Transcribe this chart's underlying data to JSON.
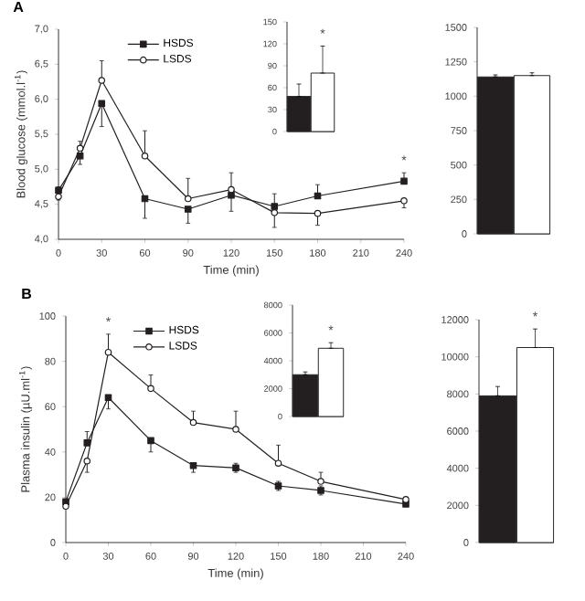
{
  "chart_data": [
    {
      "type": "line",
      "title": "A",
      "xlabel": "Time (min)",
      "ylabel": "Blood glucose (mmol.l$^{-1}$)",
      "x": [
        0,
        15,
        30,
        60,
        90,
        120,
        150,
        180,
        240
      ],
      "xlim": [
        0,
        240
      ],
      "xticks": [
        0,
        30,
        60,
        90,
        120,
        150,
        180,
        210,
        240
      ],
      "ylim": [
        4.0,
        7.0
      ],
      "yticks": [
        {
          "value": 4.0,
          "label": "4,0"
        },
        {
          "value": 4.5,
          "label": "4,5"
        },
        {
          "value": 5.0,
          "label": "5,0"
        },
        {
          "value": 5.5,
          "label": "5,5"
        },
        {
          "value": 6.0,
          "label": "6,0"
        },
        {
          "value": 6.5,
          "label": "6,5"
        },
        {
          "value": 7.0,
          "label": "7,0"
        }
      ],
      "legend": "top",
      "series": [
        {
          "name": "HSDS",
          "color": "#231f20",
          "marker": "square",
          "values": [
            4.7,
            5.19,
            5.94,
            4.58,
            4.43,
            4.63,
            4.47,
            4.62,
            4.83
          ],
          "errors": [
            [
              4.7,
              4.75
            ],
            [
              5.07,
              5.19
            ],
            [
              5.61,
              5.94
            ],
            [
              4.3,
              4.58
            ],
            [
              4.23,
              4.43
            ],
            [
              4.4,
              4.63
            ],
            [
              4.47,
              4.65
            ],
            [
              4.62,
              4.78
            ],
            [
              4.83,
              4.95
            ]
          ]
        },
        {
          "name": "LSDS",
          "color": "#231f20",
          "marker": "circle",
          "values": [
            4.61,
            5.3,
            6.27,
            5.19,
            4.58,
            4.71,
            4.38,
            4.37,
            4.55
          ],
          "errors": [
            [
              4.56,
              4.61
            ],
            [
              5.3,
              5.4
            ],
            [
              6.27,
              6.55
            ],
            [
              5.19,
              5.55
            ],
            [
              4.58,
              4.87
            ],
            [
              4.71,
              4.95
            ],
            [
              4.17,
              4.38
            ],
            [
              4.2,
              4.37
            ],
            [
              4.45,
              4.55
            ]
          ]
        }
      ],
      "annotations": [
        {
          "text": "*",
          "x": 240,
          "y": 4.95
        }
      ]
    },
    {
      "type": "bar",
      "categories": [
        null,
        null
      ],
      "values": [
        48,
        80
      ],
      "colors": [
        "#231f20",
        "#ffffff"
      ],
      "errors": [
        [
          48,
          65
        ],
        [
          80,
          117
        ]
      ],
      "ylim": [
        0,
        150
      ],
      "yticks": [
        0,
        30,
        60,
        90,
        120,
        150
      ],
      "annotations": [
        "*"
      ]
    },
    {
      "type": "bar",
      "categories": [
        null,
        null
      ],
      "values": [
        1140,
        1150
      ],
      "colors": [
        "#231f20",
        "#ffffff"
      ],
      "errors": [
        [
          1140,
          1155
        ],
        [
          1150,
          1170
        ]
      ],
      "ylim": [
        0,
        1500
      ],
      "yticks": [
        0,
        250,
        500,
        750,
        1000,
        1250,
        1500
      ]
    },
    {
      "type": "line",
      "title": "B",
      "xlabel": "Time (min)",
      "ylabel": "Plasma insulin (µU.ml$^{-1}$)",
      "x": [
        0,
        15,
        30,
        60,
        90,
        120,
        150,
        180,
        240
      ],
      "xlim": [
        0,
        240
      ],
      "xticks": [
        0,
        30,
        60,
        90,
        120,
        150,
        180,
        210,
        240
      ],
      "ylim": [
        0,
        100
      ],
      "yticks": [
        0,
        20,
        40,
        60,
        80,
        100
      ],
      "legend": "top",
      "series": [
        {
          "name": "HSDS",
          "color": "#231f20",
          "marker": "square",
          "values": [
            18,
            44,
            64,
            45,
            34,
            33,
            25,
            23,
            17
          ],
          "errors": [
            1,
            [
              44,
              49
            ],
            [
              59,
              64
            ],
            [
              40,
              45
            ],
            [
              31,
              34
            ],
            2,
            2,
            2,
            [
              16,
              17
            ]
          ]
        },
        {
          "name": "LSDS",
          "color": "#231f20",
          "marker": "circle",
          "values": [
            16,
            36,
            84,
            68,
            53,
            50,
            35,
            27,
            19
          ],
          "errors": [
            1,
            [
              31,
              36
            ],
            [
              84,
              92
            ],
            [
              68,
              74
            ],
            [
              53,
              58
            ],
            [
              50,
              58
            ],
            [
              35,
              43
            ],
            [
              27,
              31
            ],
            [
              19,
              20
            ]
          ]
        }
      ],
      "annotations": [
        {
          "text": "*",
          "x": 30,
          "y": 92
        }
      ]
    },
    {
      "type": "bar",
      "categories": [
        null,
        null
      ],
      "values": [
        3000,
        4900
      ],
      "colors": [
        "#231f20",
        "#ffffff"
      ],
      "errors": [
        [
          3000,
          3200
        ],
        [
          4900,
          5300
        ]
      ],
      "ylim": [
        0,
        8000
      ],
      "yticks": [
        0,
        2000,
        4000,
        6000,
        8000
      ],
      "annotations": [
        "*"
      ]
    },
    {
      "type": "bar",
      "categories": [
        null,
        null
      ],
      "values": [
        7900,
        10500
      ],
      "colors": [
        "#231f20",
        "#ffffff"
      ],
      "errors": [
        [
          7900,
          8400
        ],
        [
          10500,
          11500
        ]
      ],
      "ylim": [
        0,
        12000
      ],
      "yticks": [
        0,
        2000,
        4000,
        6000,
        8000,
        10000,
        12000
      ],
      "annotations": [
        "*"
      ]
    }
  ]
}
